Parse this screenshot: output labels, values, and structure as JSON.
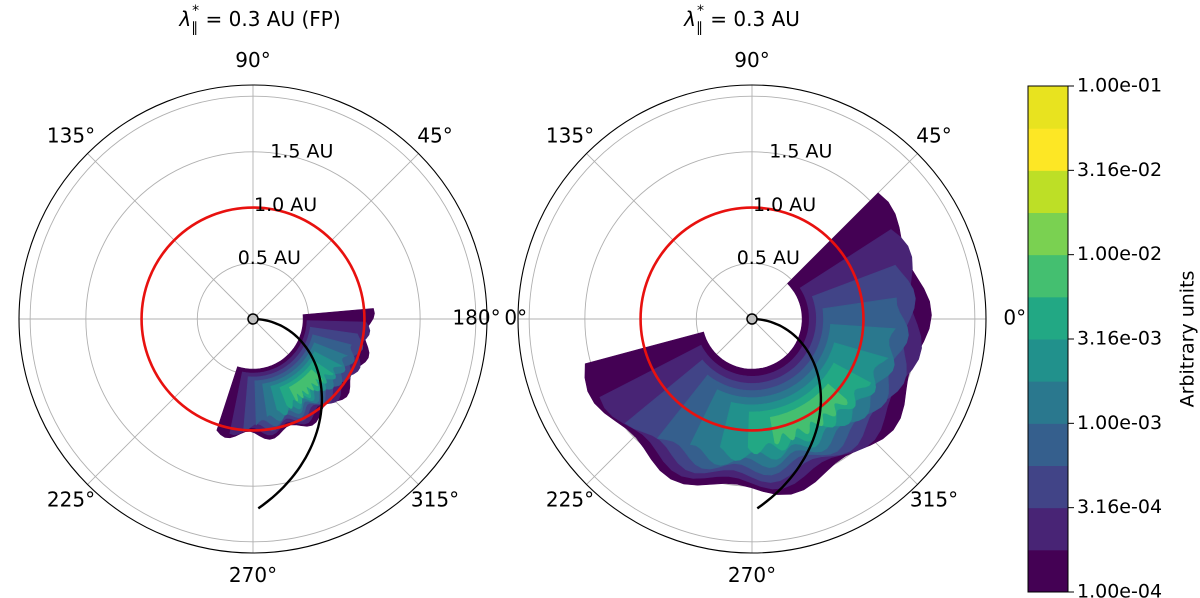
{
  "chart_data": [
    {
      "type": "contour",
      "title": {
        "main": "λ",
        "sub": "∥",
        "sup": "*",
        "rest": " = 0.3 AU (FP)"
      },
      "projection": "polar",
      "angle_ticks": [
        "0°",
        "45°",
        "90°",
        "135°",
        "180°",
        "225°",
        "270°",
        "315°"
      ],
      "radial_ticks": [
        {
          "r": 0.5,
          "label": "0.5 AU"
        },
        {
          "r": 1.0,
          "label": "1.0 AU"
        },
        {
          "r": 1.5,
          "label": "1.5 AU"
        }
      ],
      "rmax": 2.1,
      "grid": true,
      "reference_circle": {
        "r": 1.0,
        "color": "#e8110f"
      },
      "spiral_field_line": {
        "color": "#000000",
        "r_end": 1.7
      },
      "source_marker": {
        "r": 0.0,
        "style": "open-circle"
      },
      "contour_region": {
        "angle_start_deg": -108,
        "angle_end_deg": 5,
        "r_inner": 0.45,
        "r_outer": 1.05,
        "peak_level_index": 7
      }
    },
    {
      "type": "contour",
      "title": {
        "main": "λ",
        "sub": "∥",
        "sup": "*",
        "rest": " = 0.3 AU"
      },
      "projection": "polar",
      "angle_ticks": [
        "0°",
        "45°",
        "90°",
        "135°",
        "180°",
        "225°",
        "270°",
        "315°"
      ],
      "radial_ticks": [
        {
          "r": 0.5,
          "label": "0.5 AU"
        },
        {
          "r": 1.0,
          "label": "1.0 AU"
        },
        {
          "r": 1.5,
          "label": "1.5 AU"
        }
      ],
      "rmax": 2.1,
      "grid": true,
      "reference_circle": {
        "r": 1.0,
        "color": "#e8110f"
      },
      "spiral_field_line": {
        "color": "#000000",
        "r_end": 1.7
      },
      "source_marker": {
        "r": 0.0,
        "style": "open-circle"
      },
      "contour_region": {
        "angle_start_deg": -165,
        "angle_end_deg": 45,
        "r_inner": 0.45,
        "r_outer": 1.55,
        "peak_level_index": 7
      }
    }
  ],
  "colorbar": {
    "label": "Arbitrary units",
    "scale": "log",
    "range": [
      0.0001,
      0.1
    ],
    "tick_labels": [
      "1.00e-04",
      "3.16e-04",
      "1.00e-03",
      "3.16e-03",
      "1.00e-02",
      "3.16e-02",
      "1.00e-01"
    ],
    "colors": [
      "#440154",
      "#482475",
      "#414487",
      "#355f8d",
      "#2a788e",
      "#21918c",
      "#22a884",
      "#44bf70",
      "#7ad151",
      "#bddf26",
      "#fde725",
      "#e8e31f"
    ]
  }
}
